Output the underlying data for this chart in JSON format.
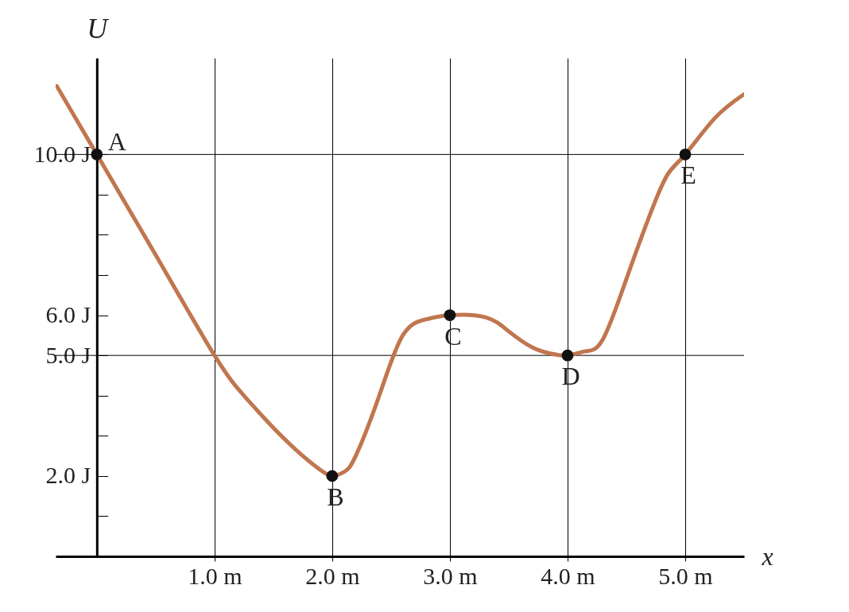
{
  "chart_data": {
    "type": "line",
    "xlabel": "x",
    "ylabel": "U",
    "xlim": [
      -0.35,
      5.5
    ],
    "ylim": [
      0,
      12.4
    ],
    "xticks": [
      {
        "value": 1,
        "label": "1.0 m"
      },
      {
        "value": 2,
        "label": "2.0 m"
      },
      {
        "value": 3,
        "label": "3.0 m"
      },
      {
        "value": 4,
        "label": "4.0 m"
      },
      {
        "value": 5,
        "label": "5.0 m"
      }
    ],
    "yticks": [
      {
        "value": 1,
        "label": null
      },
      {
        "value": 2,
        "label": "2.0 J"
      },
      {
        "value": 3,
        "label": null
      },
      {
        "value": 4,
        "label": null
      },
      {
        "value": 5,
        "label": "5.0 J"
      },
      {
        "value": 6,
        "label": "6.0 J"
      },
      {
        "value": 7,
        "label": null
      },
      {
        "value": 8,
        "label": null
      },
      {
        "value": 9,
        "label": null
      },
      {
        "value": 10,
        "label": "10.0 J"
      }
    ],
    "grid": "x",
    "ref_lines": [
      {
        "axis": "y",
        "value": 5
      },
      {
        "axis": "y",
        "value": 10
      }
    ],
    "series": [
      {
        "color": "#c0764f",
        "marker": "none",
        "x": [
          -0.34,
          0,
          0.5,
          1,
          1.25,
          1.5,
          1.75,
          1.9,
          2,
          2.1,
          2.2,
          2.4,
          2.6,
          2.8,
          3,
          3.3,
          3.5,
          3.7,
          3.85,
          4,
          4.15,
          4.3,
          4.5,
          4.7,
          4.85,
          5,
          5.25,
          5.5
        ],
        "values": [
          11.7,
          10,
          7.5,
          5,
          4.0,
          3.2,
          2.5,
          2.15,
          2,
          2.1,
          2.5,
          4,
          5.5,
          5.9,
          6,
          5.95,
          5.6,
          5.2,
          5.05,
          5,
          5.1,
          5.4,
          6.9,
          8.5,
          9.5,
          10,
          10.9,
          11.5
        ]
      },
      {
        "type": "scatter",
        "color": "#111111",
        "marker": "circle",
        "x": [
          0,
          2,
          3,
          4,
          5
        ],
        "values": [
          10,
          2,
          6,
          5,
          10
        ]
      }
    ],
    "annotations": [
      {
        "text": "A",
        "x": 0,
        "y": 10
      },
      {
        "text": "B",
        "x": 2,
        "y": 2
      },
      {
        "text": "C",
        "x": 3,
        "y": 6
      },
      {
        "text": "D",
        "x": 4,
        "y": 5
      },
      {
        "text": "E",
        "x": 5,
        "y": 10
      }
    ]
  }
}
